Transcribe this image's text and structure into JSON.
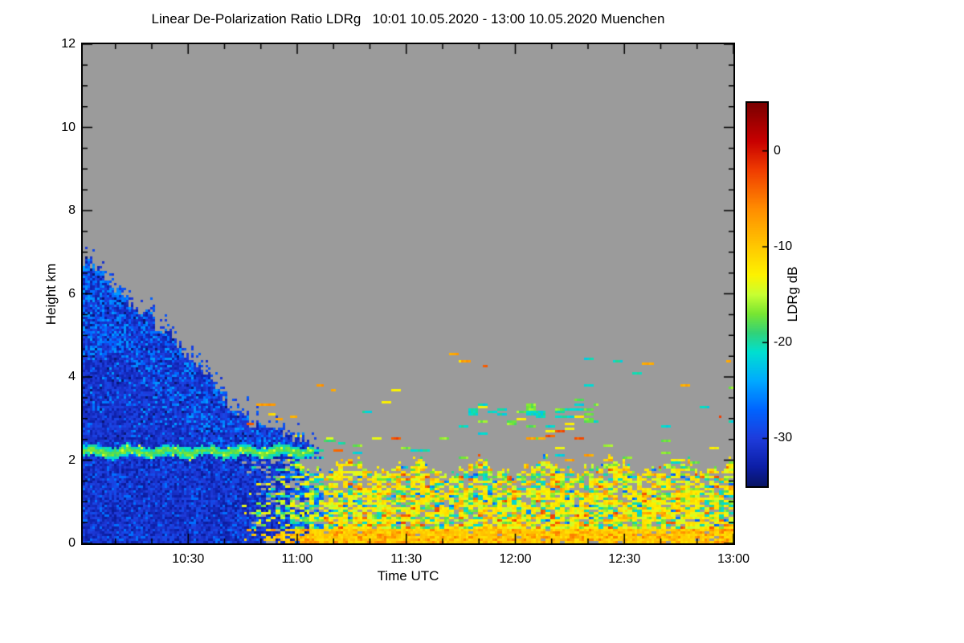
{
  "title": "Linear De-Polarization Ratio LDRg   10:01 10.05.2020 - 13:00 10.05.2020 Muenchen",
  "axes": {
    "x_label": "Time UTC",
    "y_label": "Height km",
    "x_start": "10:01",
    "x_end": "13:00",
    "duration_min": 179,
    "x_ticks": [
      {
        "label": "10:30",
        "min": 29
      },
      {
        "label": "11:00",
        "min": 59
      },
      {
        "label": "11:30",
        "min": 89
      },
      {
        "label": "12:00",
        "min": 119
      },
      {
        "label": "12:30",
        "min": 149
      },
      {
        "label": "13:00",
        "min": 179
      }
    ],
    "x_minor_step_min": 10,
    "y_min": 0,
    "y_max": 12,
    "y_ticks": [
      0,
      2,
      4,
      6,
      8,
      10,
      12
    ],
    "y_minor_step": 0.5
  },
  "colorbar": {
    "label": "LDRg dB",
    "ticks": [
      0,
      -10,
      -20,
      -30
    ],
    "vmax": 5,
    "vmin": -35,
    "colormap": [
      [
        5,
        "#7a0000"
      ],
      [
        1,
        "#c80000"
      ],
      [
        -2,
        "#f03c00"
      ],
      [
        -6,
        "#ff8c00"
      ],
      [
        -10,
        "#ffc800"
      ],
      [
        -13,
        "#fdf300"
      ],
      [
        -15,
        "#c8ff32"
      ],
      [
        -17,
        "#78e632"
      ],
      [
        -19,
        "#32d278"
      ],
      [
        -21,
        "#00e0d0"
      ],
      [
        -24,
        "#00aaff"
      ],
      [
        -27,
        "#0064ff"
      ],
      [
        -30,
        "#1e3cdc"
      ],
      [
        -33,
        "#0c1ea6"
      ],
      [
        -35,
        "#081464"
      ]
    ]
  },
  "plot": {
    "no_data_color": "#9b9b9b",
    "background": "#ffffff"
  },
  "chart_data": {
    "type": "heatmap",
    "title": "Linear De-Polarization Ratio LDRg",
    "station": "Muenchen",
    "time_range_utc": [
      "10:01 10.05.2020",
      "13:00 10.05.2020"
    ],
    "x_range_utc": [
      "10:01",
      "13:00"
    ],
    "y_range_km": [
      0,
      12
    ],
    "value_range_db": [
      -35,
      5
    ],
    "no_data_color": "#9b9b9b",
    "features": {
      "description": "Gray = no signal. Left third: deep-blue (LDR ~ -31 dB) cloud and rain column starting 10:01; cloud top slopes from ~6.8 km down to ~2.5 km by ~11:00 with lighter blue (~-26 dB) streaks near the sloping top. A cyan-green melting-layer bright band (~ -18 dB) sits at ~2.2 km from 10:01 until ~11:05. Below ~2 km dark-blue rain until ~10:45, then transitioning to speckled yellow/green/cyan drizzle (-22 to -7 dB) with gray gaps that persists to 13:00 below ~1.9 km; near-surface layer is mostly solid yellow-orange. Sparse cyan/green/orange specks between 2 and 4.5 km after 11:30, densest cyan-green cluster at 2.8-3.3 km between ~11:47 and ~12:23 with a few orange/red dashes at 2.5-2.8 km near 12:05-12:20.",
      "cloud": {
        "t_end_min": 64,
        "top_km_points": [
          [
            0,
            6.85
          ],
          [
            6,
            6.35
          ],
          [
            12,
            5.9
          ],
          [
            18,
            5.45
          ],
          [
            24,
            5.0
          ],
          [
            30,
            4.45
          ],
          [
            36,
            3.8
          ],
          [
            42,
            3.2
          ],
          [
            48,
            2.85
          ],
          [
            56,
            2.6
          ],
          [
            64,
            2.45
          ]
        ],
        "base_db": -31,
        "light_db": -26
      },
      "bright_band": {
        "h_km": 2.2,
        "half_width_km": 0.13,
        "t_end_min": 64,
        "core_db": -17.5,
        "edge_db": -20.5
      },
      "blue_rain": {
        "t_solid_end_min": 42,
        "t_fade_end_min": 64,
        "db": -31
      },
      "speckle_rain": {
        "t_start_min": 38,
        "top_km": 1.85,
        "gap_frac_low": 0.05,
        "gap_frac_mid": 0.16,
        "gap_frac_high": 0.3
      },
      "mid_specks": {
        "base_p": 0.012,
        "bands": [
          {
            "t": [
              106,
              142
            ],
            "h": [
              2.8,
              3.35
            ],
            "p": 0.22,
            "tone": "cool"
          },
          {
            "t": [
              125,
              141
            ],
            "h": [
              2.5,
              2.8
            ],
            "p": 0.12,
            "tone": "warm"
          },
          {
            "t": [
              140,
              176
            ],
            "h": [
              2.4,
              3.2
            ],
            "p": 0.05
          },
          {
            "t": [
              58,
              179
            ],
            "h": [
              1.9,
              2.6
            ],
            "p": 0.035
          },
          {
            "t": [
              84,
              100
            ],
            "h": [
              2.2,
              2.7
            ],
            "p": 0.05
          }
        ]
      },
      "spots": [
        {
          "t": 45,
          "h": 2.9,
          "len_min": 2,
          "db": -3
        },
        {
          "t": 48,
          "h": 3.35,
          "len_min": 2.5,
          "db": -7
        },
        {
          "t": 51,
          "h": 3.15,
          "len_min": 2,
          "db": -11
        },
        {
          "t": 53,
          "h": 3.0,
          "len_min": 2,
          "db": -8
        },
        {
          "t": 57,
          "h": 3.1,
          "len_min": 2,
          "db": -9
        },
        {
          "t": 64,
          "h": 3.85,
          "len_min": 2,
          "db": -7
        },
        {
          "t": 66,
          "h": 2.5,
          "len_min": 3,
          "db": -19
        },
        {
          "t": 67,
          "h": 2.55,
          "len_min": 2,
          "db": -14
        },
        {
          "t": 70,
          "h": 2.45,
          "len_min": 2,
          "db": -20
        },
        {
          "t": 68,
          "h": 3.72,
          "len_min": 1.5,
          "db": -8
        },
        {
          "t": 104,
          "h": 4.42,
          "len_min": 2.5,
          "db": -7
        },
        {
          "t": 110,
          "h": 4.3,
          "len_min": 1.2,
          "db": -4
        },
        {
          "t": 154,
          "h": 4.35,
          "len_min": 3,
          "db": -8
        },
        {
          "t": 177,
          "h": 4.4,
          "len_min": 1.5,
          "db": -8
        }
      ]
    }
  }
}
